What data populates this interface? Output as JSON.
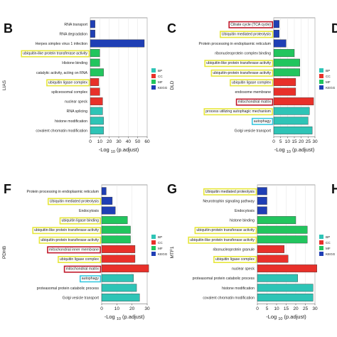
{
  "colors": {
    "BP": "#2ec4b6",
    "CC": "#e8302a",
    "MF": "#22c55e",
    "KEGG": "#1f3fb5",
    "box_yellow": "#e6e63a",
    "box_red": "#c0182a",
    "box_cyan": "#38c8e0"
  },
  "chart_data": [
    {
      "type": "bar",
      "panel": "B",
      "gene": "LIAS",
      "legend_title": "",
      "xlabel_main": "-Log",
      "xlabel_sub": "10",
      "xlabel_tail": "(p.adjust)",
      "xlim": [
        0,
        60
      ],
      "xticks": [
        0,
        10,
        20,
        30,
        40,
        50,
        60
      ],
      "categories": [
        "RNA transport",
        "RNA degradation",
        "Herpes simplex virus 1 infection",
        "ubiquitin-like protein transferase activity",
        "Histone binding",
        "catalytic activity, acting on RNA",
        "ubiquitin ligase complex",
        "spliceosomal complex",
        "nuclear speck",
        "RNA splicing",
        "histone modification",
        "covalent chromatin modification"
      ],
      "values": [
        5,
        5,
        57,
        10,
        10,
        14,
        9,
        10,
        13,
        13,
        14,
        14
      ],
      "groups": [
        "KEGG",
        "KEGG",
        "KEGG",
        "MF",
        "MF",
        "MF",
        "CC",
        "CC",
        "CC",
        "BP",
        "BP",
        "BP"
      ],
      "boxes": [
        "none",
        "none",
        "none",
        "yellow",
        "none",
        "none",
        "yellow",
        "none",
        "none",
        "none",
        "none",
        "none"
      ]
    },
    {
      "type": "bar",
      "panel": "C",
      "gene": "DLD",
      "legend_title": "",
      "xlabel_main": "-Log",
      "xlabel_sub": "10",
      "xlabel_tail": "(p.adjust)",
      "xlim": [
        0,
        30
      ],
      "xticks": [
        0,
        5,
        10,
        15,
        20,
        25,
        30
      ],
      "categories": [
        "Citrate cycle (TCA cycle)",
        "Ubiquitin mediated proteolysis",
        "Protein processing in endoplasmic reticulum",
        "ribonucleoprotein complex binding",
        "ubiquitin-like protein transferase activity",
        "ubiquitin-protein transferase activity",
        "ubiquitin ligase complex",
        "endosome membrane",
        "mitochondrial matrix",
        "process utilizing autophagic mechanism",
        "autophagy",
        "Golgi vesicle transport"
      ],
      "values": [
        4,
        4,
        9,
        15,
        19,
        19,
        16,
        16,
        29,
        26,
        25,
        28
      ],
      "groups": [
        "KEGG",
        "KEGG",
        "KEGG",
        "MF",
        "MF",
        "MF",
        "CC",
        "CC",
        "CC",
        "BP",
        "BP",
        "BP"
      ],
      "boxes": [
        "red",
        "yellow",
        "none",
        "none",
        "yellow",
        "yellow",
        "yellow",
        "none",
        "red",
        "yellow",
        "cyan",
        "none"
      ]
    },
    {
      "type": "bar",
      "panel": "F",
      "gene": "PDHB",
      "legend_title": "",
      "xlabel_main": "-Log",
      "xlabel_sub": "10",
      "xlabel_tail": "(p.adjust)",
      "xlim": [
        0,
        30
      ],
      "xticks": [
        0,
        10,
        20,
        30
      ],
      "categories": [
        "Protein processing in endoplasmic reticulum",
        "Ubiquitin mediated proteolysis",
        "Endocytosis",
        "ubiquitin ligase binding",
        "ubiquitin-like protein transferase activity",
        "ubiquitin-protein transferase activity",
        "mitochondrial inner membrane",
        "ubiquitin ligase complex",
        "mitochondrial matrix",
        "autophagy",
        "proteasomal protein catabolic process",
        "Golgi vesicle transport"
      ],
      "values": [
        3,
        7,
        9,
        17,
        19,
        19,
        22,
        22,
        31,
        21,
        23,
        25
      ],
      "groups": [
        "KEGG",
        "KEGG",
        "KEGG",
        "MF",
        "MF",
        "MF",
        "CC",
        "CC",
        "CC",
        "BP",
        "BP",
        "BP"
      ],
      "boxes": [
        "none",
        "yellow",
        "none",
        "yellow",
        "yellow",
        "yellow",
        "red",
        "yellow",
        "red",
        "cyan",
        "none",
        "none"
      ]
    },
    {
      "type": "bar",
      "panel": "G",
      "gene": "MTF1",
      "legend_title": "",
      "xlabel_main": "-Log",
      "xlabel_sub": "10",
      "xlabel_tail": "(p.adjust)",
      "xlim": [
        0,
        30
      ],
      "xticks": [
        0,
        5,
        10,
        15,
        20,
        25,
        30
      ],
      "categories": [
        "Ubiquitin mediated proteolysis",
        "Neurotrophin signaling pathway",
        "Endocytosis",
        "histone binding",
        "ubiquitin-protein transferase activity",
        "ubiquitin-like protein transferase activity",
        "ribonucleoprotein granule",
        "ubiquitin ligase complex",
        "nuclear speck",
        "proteasomal protein catabolic process",
        "histone modification",
        "covalent chromatin modification"
      ],
      "values": [
        5,
        5,
        5,
        20,
        26,
        26,
        14,
        16,
        31,
        21,
        29,
        29
      ],
      "groups": [
        "KEGG",
        "KEGG",
        "KEGG",
        "MF",
        "MF",
        "MF",
        "CC",
        "CC",
        "CC",
        "BP",
        "BP",
        "BP"
      ],
      "boxes": [
        "yellow",
        "none",
        "none",
        "none",
        "yellow",
        "yellow",
        "none",
        "yellow",
        "none",
        "none",
        "none",
        "none"
      ]
    }
  ],
  "legend_entries": [
    "BP",
    "CC",
    "MF",
    "KEGG"
  ],
  "edge_letters": [
    "D",
    "H"
  ]
}
